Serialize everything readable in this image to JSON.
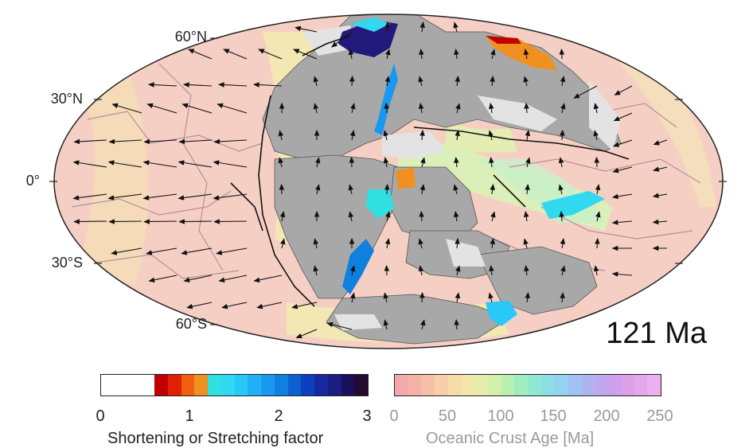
{
  "map": {
    "latitude_labels": [
      "60°N",
      "30°N",
      "0°",
      "30°S",
      "60°S"
    ],
    "age_label": "121 Ma"
  },
  "colorbar_left": {
    "colors": [
      "#ffffff",
      "#ffffff",
      "#ffffff",
      "#ffffff",
      "#c00000",
      "#e02000",
      "#f06010",
      "#f09020",
      "#30e0e0",
      "#30d8f0",
      "#28c8f8",
      "#20b0f8",
      "#1898f0",
      "#1080e0",
      "#0c60d0",
      "#0c40c0",
      "#1a28a0",
      "#1c1c80",
      "#1a0f5a",
      "#220a30"
    ],
    "ticks": [
      "0",
      "1",
      "2",
      "3"
    ],
    "title": "Shortening or Stretching factor"
  },
  "colorbar_right": {
    "colors": [
      "#f3a9a9",
      "#f5b3a8",
      "#f6c0a8",
      "#f7cfa8",
      "#f6dca8",
      "#f2e6a8",
      "#e6ecaa",
      "#d2f0aa",
      "#baf0b0",
      "#a0eec0",
      "#8ee8d2",
      "#8cdfe4",
      "#94d2ef",
      "#a0c2f2",
      "#aeb4f2",
      "#bea8f0",
      "#cca0ec",
      "#daa0e8",
      "#e6a6ec",
      "#eeb0f0"
    ],
    "ticks": [
      "0",
      "50",
      "100",
      "150",
      "200",
      "250"
    ],
    "title": "Oceanic Crust Age [Ma]"
  }
}
